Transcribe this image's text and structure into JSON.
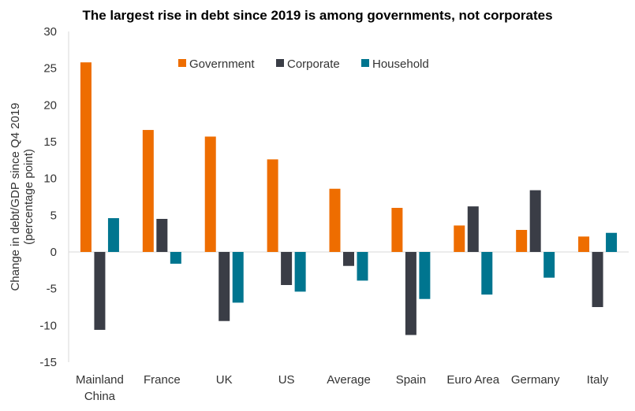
{
  "chart_data": {
    "type": "bar",
    "title": "The largest rise in debt since 2019 is among governments, not corporates",
    "ylabel": [
      "Change in debt/GDP since Q4 2019",
      "(percentage point)"
    ],
    "xlabel": "",
    "ylim": [
      -15,
      30
    ],
    "yticks": [
      30,
      25,
      20,
      15,
      10,
      5,
      0,
      -5,
      -10,
      -15
    ],
    "grid": false,
    "legend_position": "top-center",
    "categories": [
      [
        "Mainland",
        "China"
      ],
      [
        "France"
      ],
      [
        "UK"
      ],
      [
        "US"
      ],
      [
        "Average"
      ],
      [
        "Spain"
      ],
      [
        "Euro Area"
      ],
      [
        "Germany"
      ],
      [
        "Italy"
      ]
    ],
    "series": [
      {
        "name": "Government",
        "color": "#EE6D00",
        "values": [
          25.8,
          16.6,
          15.7,
          12.6,
          8.6,
          6.0,
          3.6,
          3.0,
          2.1
        ]
      },
      {
        "name": "Corporate",
        "color": "#3A3D46",
        "values": [
          -10.6,
          4.5,
          -9.4,
          -4.5,
          -1.9,
          -11.3,
          6.2,
          8.4,
          -7.5
        ]
      },
      {
        "name": "Household",
        "color": "#00758F",
        "values": [
          4.6,
          -1.6,
          -6.9,
          -5.4,
          -3.9,
          -6.4,
          -5.8,
          -3.5,
          2.6
        ]
      }
    ]
  }
}
